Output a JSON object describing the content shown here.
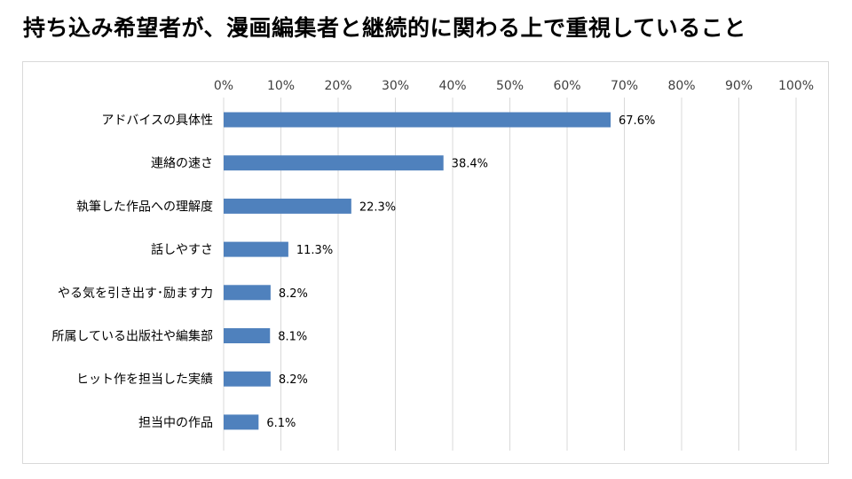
{
  "title": "持ち込み希望者が、漫画編集者と継続的に関わる上で重視していること",
  "chart_data": {
    "type": "bar",
    "orientation": "horizontal",
    "title": "持ち込み希望者が、漫画編集者と継続的に関わる上で重視していること",
    "categories": [
      "アドバイスの具体性",
      "連絡の速さ",
      "執筆した作品への理解度",
      "話しやすさ",
      "やる気を引き出す･励ます力",
      "所属している出版社や編集部",
      "ヒット作を担当した実績",
      "担当中の作品"
    ],
    "values": [
      67.6,
      38.4,
      22.3,
      11.3,
      8.2,
      8.1,
      8.2,
      6.1
    ],
    "value_labels": [
      "67.6%",
      "38.4%",
      "22.3%",
      "11.3%",
      "8.2%",
      "8.1%",
      "8.2%",
      "6.1%"
    ],
    "xlim": [
      0,
      100
    ],
    "x_ticks": [
      "0%",
      "10%",
      "20%",
      "30%",
      "40%",
      "50%",
      "60%",
      "70%",
      "80%",
      "90%",
      "100%"
    ],
    "x_axis_position": "top",
    "grid": true,
    "bar_color": "#4f81bd",
    "grid_color": "#d9d9d9"
  }
}
